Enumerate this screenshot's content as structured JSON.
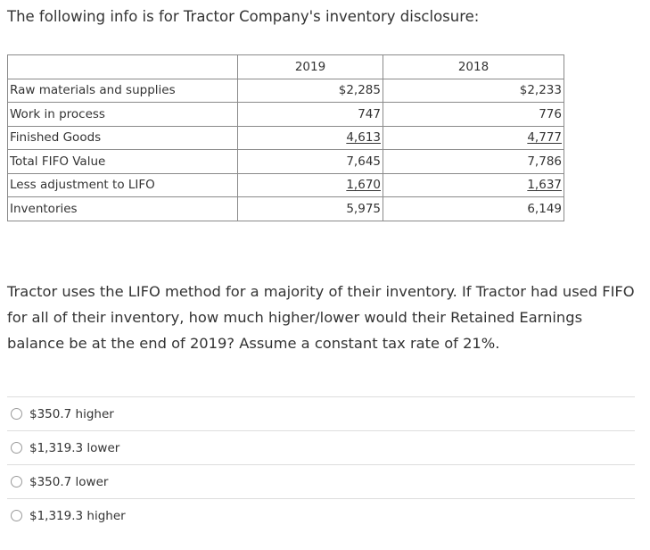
{
  "intro_text": "The following info is for Tractor Company's inventory disclosure:",
  "table": {
    "headers": [
      "",
      "2019",
      "2018"
    ],
    "rows": [
      {
        "label": "Raw materials and supplies",
        "y2019": "$2,285",
        "y2018": "$2,233",
        "underline": false
      },
      {
        "label": "Work in process",
        "y2019": "747",
        "y2018": "776",
        "underline": false
      },
      {
        "label": "Finished Goods",
        "y2019": "4,613",
        "y2018": "4,777",
        "underline": true
      },
      {
        "label": "Total FIFO Value",
        "y2019": "7,645",
        "y2018": "7,786",
        "underline": false
      },
      {
        "label": "Less adjustment to LIFO",
        "y2019": "1,670",
        "y2018": "1,637",
        "underline": true
      },
      {
        "label": "Inventories",
        "y2019": "5,975",
        "y2018": "6,149",
        "underline": false
      }
    ]
  },
  "question": "Tractor uses the LIFO method for a majority of their inventory.  If Tractor had used FIFO for all of their inventory, how much higher/lower would their Retained Earnings balance be at the end of 2019? Assume a constant tax rate of 21%.",
  "choices": [
    {
      "label": "$350.7 higher",
      "selected": false
    },
    {
      "label": "$1,319.3 lower",
      "selected": false
    },
    {
      "label": "$350.7 lower",
      "selected": false
    },
    {
      "label": "$1,319.3 higher",
      "selected": false
    }
  ]
}
